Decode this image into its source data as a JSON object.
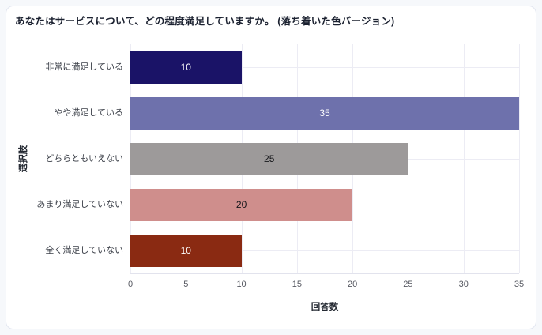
{
  "card": {
    "title": "あなたはサービスについて、どの程度満足していますか。 (落ち着いた色バージョン)"
  },
  "chart_data": {
    "type": "bar",
    "orientation": "horizontal",
    "title": "あなたはサービスについて、どの程度満足していますか。 (落ち着いた色バージョン)",
    "categories": [
      "非常に満足している",
      "やや満足している",
      "どちらともいえない",
      "あまり満足していない",
      "全く満足していない"
    ],
    "values": [
      10,
      35,
      25,
      20,
      10
    ],
    "bar_colors": [
      "#1a1367",
      "#6e71ac",
      "#9d9a9a",
      "#cf8e8c",
      "#8a2a12"
    ],
    "value_label_colors": [
      "#ffffff",
      "#ffffff",
      "#15161a",
      "#15161a",
      "#ffffff"
    ],
    "xlabel": "回答数",
    "ylabel": "選択肢",
    "xlim": [
      0,
      35
    ],
    "xticks": [
      0,
      5,
      10,
      15,
      20,
      25,
      30,
      35
    ],
    "grid": true,
    "legend": "none"
  },
  "colors": {
    "page_bg": "#f6f8fb",
    "card_bg": "#ffffff",
    "card_border": "#e2e6f0",
    "grid_line": "#ececf4",
    "axis_line": "#e2e3ed",
    "tick_label": "#565861",
    "category_label": "#3c4049",
    "axis_title": "#252a33",
    "title_text": "#1b2130"
  }
}
